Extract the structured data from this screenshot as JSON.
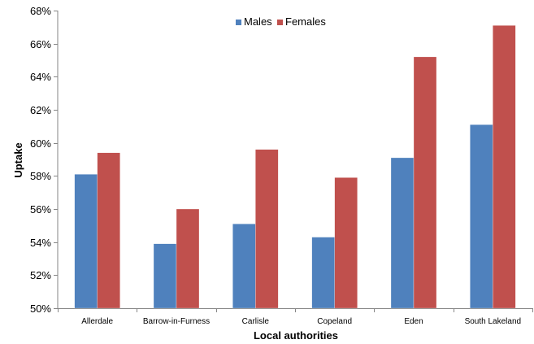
{
  "chart_data": {
    "type": "bar",
    "categories": [
      "Allerdale",
      "Barrow-in-Furness",
      "Carlisle",
      "Copeland",
      "Eden",
      "South Lakeland"
    ],
    "series": [
      {
        "name": "Males",
        "values": [
          58.1,
          53.9,
          55.1,
          54.3,
          59.1,
          61.1
        ],
        "color": "#4f81bd"
      },
      {
        "name": "Females",
        "values": [
          59.4,
          56.0,
          59.6,
          57.9,
          65.2,
          67.1
        ],
        "color": "#c0504d"
      }
    ],
    "title": "",
    "xlabel": "Local authorities",
    "ylabel": "Uptake",
    "ylim": [
      50,
      68
    ],
    "ytick_step": 2,
    "ytick_format": "%",
    "ytick_labels": [
      "50%",
      "52%",
      "54%",
      "56%",
      "58%",
      "60%",
      "62%",
      "64%",
      "66%",
      "68%"
    ],
    "legend_position": "top-center",
    "grid": false
  }
}
